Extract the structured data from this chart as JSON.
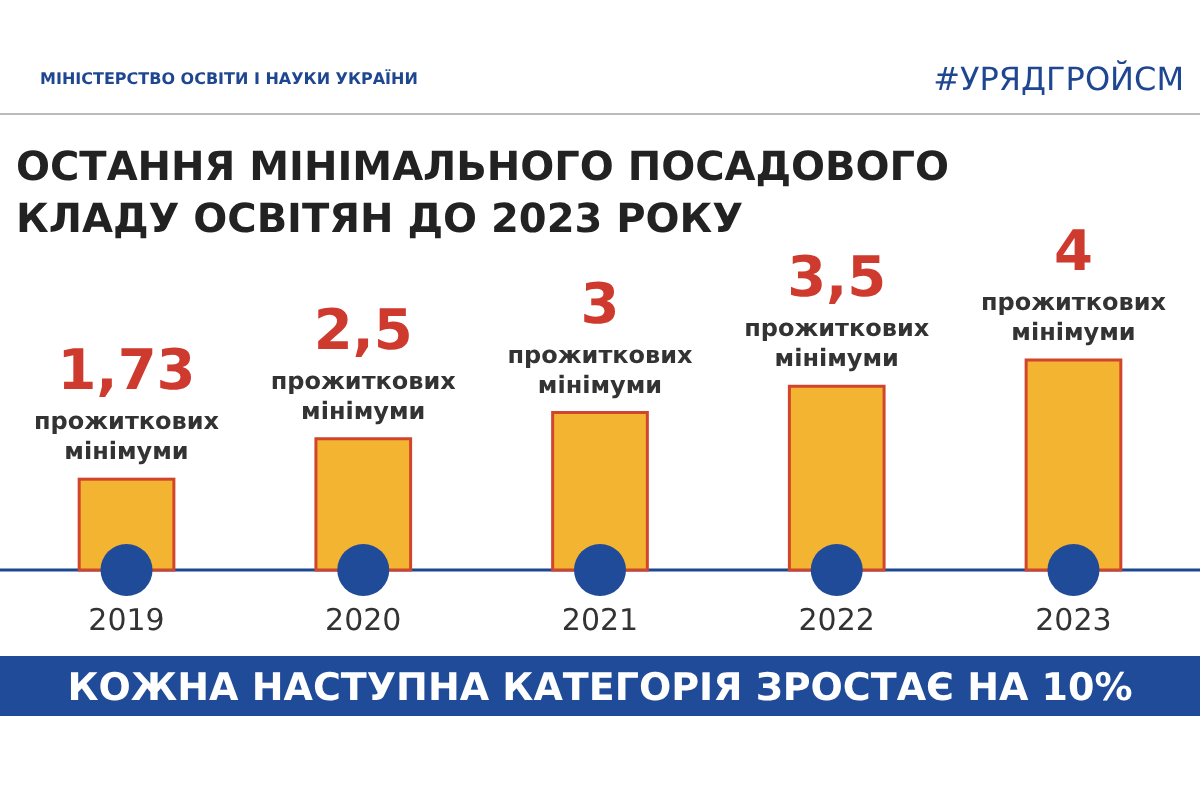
{
  "chart_data": {
    "type": "bar",
    "title": "ОСТАННЯ МІНІМАЛЬНОГО ПОСАДОВОГО КЛАДУ ОСВІТЯН ДО 2023 РОКУ",
    "categories": [
      "2019",
      "2020",
      "2021",
      "2022",
      "2023"
    ],
    "values": [
      1.73,
      2.5,
      3,
      3.5,
      4
    ],
    "value_labels": [
      "1,73",
      "2,5",
      "3",
      "3,5",
      "4"
    ],
    "color": "#f2b431",
    "annotations": [
      "МІНІСТЕРСТВО ОСВІТИ І НАУКИ УКРАЇНИ",
      "#УРЯДГРОЙСМ",
      {
        "text": "прожиткових мінімуми",
        "x": "2019",
        "y": 1.73
      },
      {
        "text": "прожиткових мінімуми",
        "x": "2020",
        "y": 2.5
      },
      {
        "text": "прожиткових мінімуми",
        "x": "2021",
        "y": 3
      },
      {
        "text": "прожиткових мінімуми",
        "x": "2022",
        "y": 3.5
      },
      {
        "text": "прожиткових мінімуми",
        "x": "2023",
        "y": 4
      },
      "КОЖНА НАСТУПНА КАТЕГОРІЯ ЗРОСТАЄ НА 10%"
    ]
  }
}
